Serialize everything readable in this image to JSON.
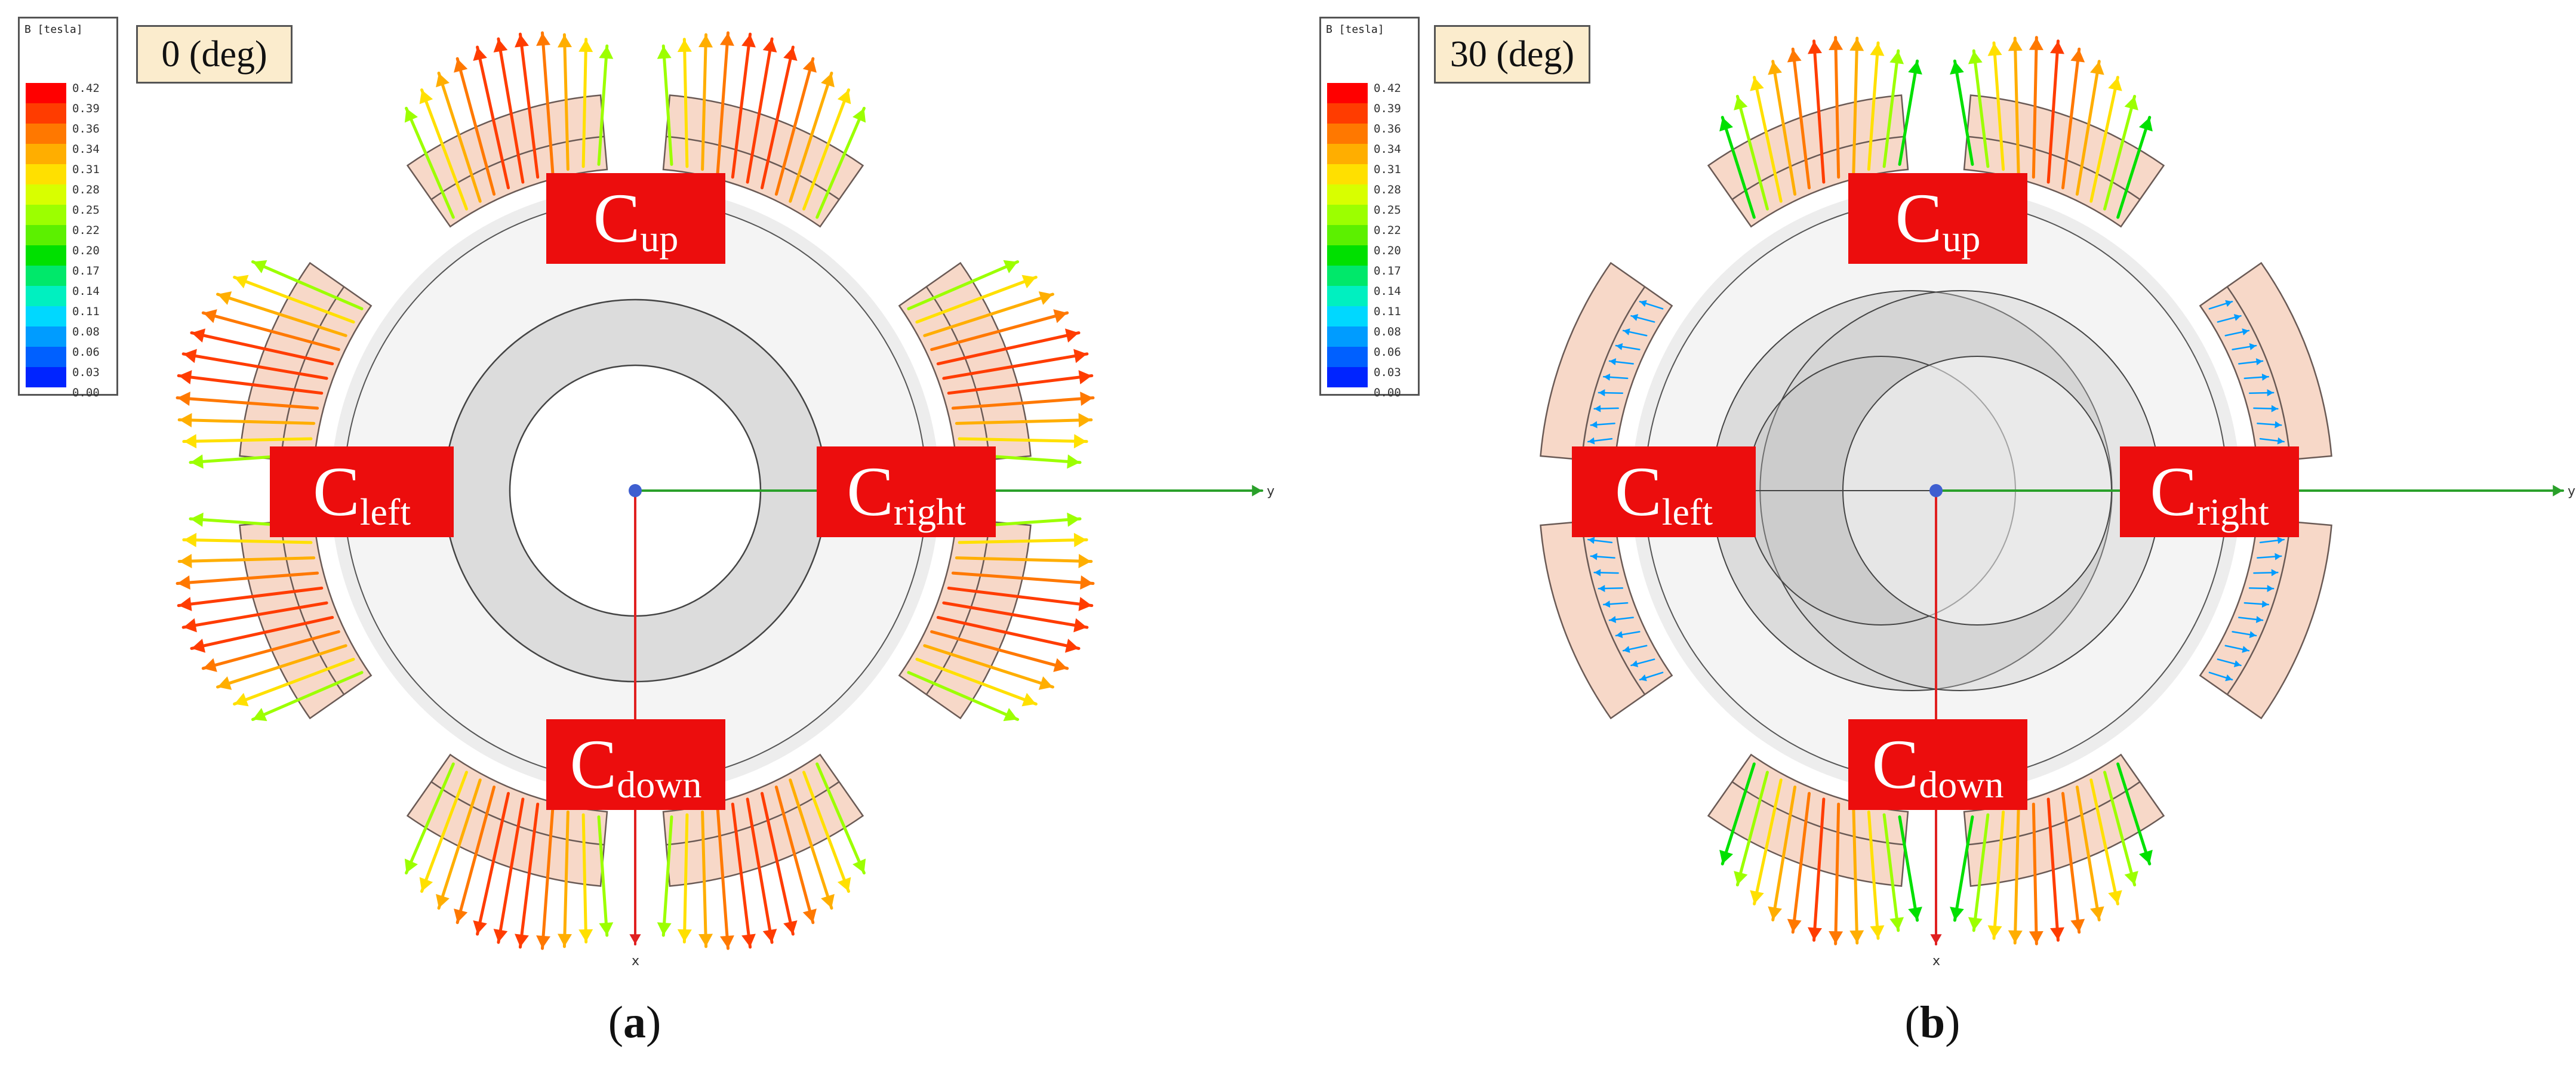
{
  "panels": [
    {
      "id": "a",
      "caption_letter": "a",
      "angle_label": "0 (deg)",
      "rotor_offset_deg": 0
    },
    {
      "id": "b",
      "caption_letter": "b",
      "angle_label": "30 (deg)",
      "rotor_offset_deg": 30
    }
  ],
  "legend": {
    "title": "B [tesla]",
    "ticks": [
      "0.42",
      "0.39",
      "0.36",
      "0.34",
      "0.31",
      "0.28",
      "0.25",
      "0.22",
      "0.20",
      "0.17",
      "0.14",
      "0.11",
      "0.08",
      "0.06",
      "0.03",
      "0.00"
    ],
    "colors": [
      "#ff0000",
      "#ff3c00",
      "#ff7800",
      "#ffae00",
      "#ffe000",
      "#d8ff00",
      "#9cff00",
      "#5cf000",
      "#00e000",
      "#00e86a",
      "#00f0c0",
      "#00d8ff",
      "#009cff",
      "#0060ff",
      "#0024ff"
    ]
  },
  "coil_labels": {
    "base": "C",
    "up": "up",
    "down": "down",
    "left": "left",
    "right": "right"
  },
  "axes": {
    "y_label": "y",
    "x_label": "x"
  },
  "caption_parens": {
    "open": "(",
    "close": ")"
  },
  "colors": {
    "coil_box": "#ec0d0d",
    "magnet_fill": "#f7d8c8",
    "magnet_stroke": "#6a5a55",
    "y_axis": "#2aa02a",
    "x_axis": "#e02020"
  }
}
